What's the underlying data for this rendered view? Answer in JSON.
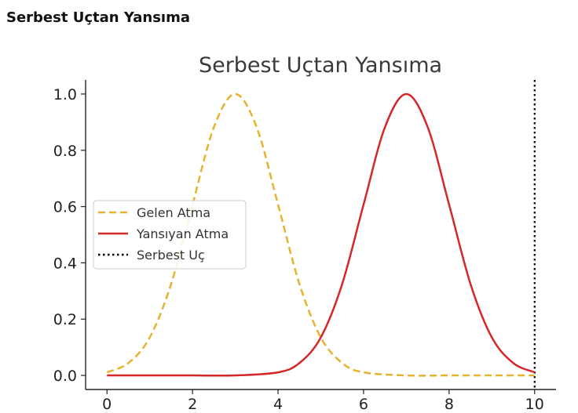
{
  "page": {
    "heading": "Serbest Uçtan Yansıma"
  },
  "chart_data": {
    "type": "line",
    "title": "Serbest Uçtan Yansıma",
    "xlabel": "",
    "ylabel": "",
    "xlim": [
      -0.5,
      10.5
    ],
    "ylim": [
      -0.05,
      1.05
    ],
    "xticks": [
      0,
      2,
      4,
      6,
      8,
      10
    ],
    "yticks": [
      0.0,
      0.2,
      0.4,
      0.6,
      0.8,
      1.0
    ],
    "xtick_labels": [
      "0",
      "2",
      "4",
      "6",
      "8",
      "10"
    ],
    "ytick_labels": [
      "0.0",
      "0.2",
      "0.4",
      "0.6",
      "0.8",
      "1.0"
    ],
    "grid": false,
    "legend_position": "center-left",
    "series": [
      {
        "name": "Gelen Atma",
        "color": "#E6B32E",
        "style": "dashed",
        "x": [
          0,
          0.5,
          1,
          1.5,
          2,
          2.5,
          3,
          3.5,
          4,
          4.5,
          5,
          5.5,
          6,
          7,
          8,
          9,
          10
        ],
        "y": [
          0.011,
          0.044,
          0.135,
          0.325,
          0.607,
          0.882,
          1.0,
          0.882,
          0.607,
          0.325,
          0.135,
          0.044,
          0.011,
          0.0,
          0.0,
          0.0,
          0.0
        ]
      },
      {
        "name": "Yansıyan Atma",
        "color": "#D62728",
        "style": "solid",
        "x": [
          0,
          1,
          2,
          3,
          4,
          4.5,
          5,
          5.5,
          6,
          6.5,
          7,
          7.5,
          8,
          8.5,
          9,
          9.5,
          10
        ],
        "y": [
          0.0,
          0.0,
          0.0,
          0.0,
          0.011,
          0.044,
          0.135,
          0.325,
          0.607,
          0.882,
          1.0,
          0.882,
          0.607,
          0.325,
          0.135,
          0.044,
          0.011
        ]
      }
    ],
    "vlines": [
      {
        "name": "Serbest Uç",
        "x": 10,
        "color": "#000000",
        "style": "dotted"
      }
    ]
  }
}
